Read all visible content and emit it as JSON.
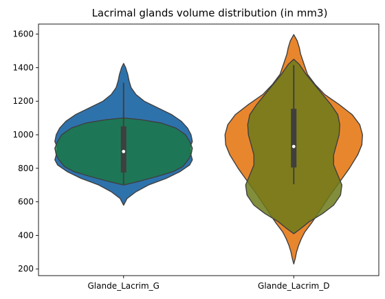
{
  "chart_data": {
    "type": "violin",
    "title": "Lacrimal glands volume distribution (in mm3)",
    "xlabel": "",
    "ylabel": "",
    "ylim": [
      160,
      1660
    ],
    "yticks": [
      200,
      400,
      600,
      800,
      1000,
      1200,
      1400,
      1600
    ],
    "categories": [
      "Glande_Lacrim_G",
      "Glande_Lacrim_D"
    ],
    "grid": false,
    "legend": "none",
    "violins": [
      {
        "category": "Glande_Lacrim_G",
        "layer": "back",
        "color": "#2e72ac",
        "profile": [
          [
            580,
            0
          ],
          [
            620,
            0.05
          ],
          [
            660,
            0.18
          ],
          [
            700,
            0.36
          ],
          [
            740,
            0.62
          ],
          [
            780,
            0.82
          ],
          [
            820,
            0.96
          ],
          [
            850,
            1.0
          ],
          [
            880,
            0.98
          ],
          [
            920,
            0.96
          ],
          [
            960,
            1.0
          ],
          [
            1000,
            0.98
          ],
          [
            1040,
            0.93
          ],
          [
            1080,
            0.84
          ],
          [
            1120,
            0.7
          ],
          [
            1160,
            0.5
          ],
          [
            1200,
            0.3
          ],
          [
            1240,
            0.18
          ],
          [
            1280,
            0.11
          ],
          [
            1320,
            0.08
          ],
          [
            1360,
            0.06
          ],
          [
            1400,
            0.03
          ],
          [
            1425,
            0
          ]
        ]
      },
      {
        "category": "Glande_Lacrim_G",
        "layer": "front",
        "color": "#1a7846",
        "profile": [
          [
            700,
            0
          ],
          [
            720,
            0.2
          ],
          [
            750,
            0.48
          ],
          [
            780,
            0.72
          ],
          [
            810,
            0.86
          ],
          [
            850,
            0.94
          ],
          [
            880,
            0.98
          ],
          [
            920,
            1.0
          ],
          [
            960,
            0.96
          ],
          [
            1000,
            0.9
          ],
          [
            1040,
            0.76
          ],
          [
            1070,
            0.55
          ],
          [
            1090,
            0.25
          ],
          [
            1100,
            0
          ]
        ]
      },
      {
        "category": "Glande_Lacrim_D",
        "layer": "back",
        "color": "#e8862e",
        "profile": [
          [
            230,
            0
          ],
          [
            260,
            0.02
          ],
          [
            300,
            0.04
          ],
          [
            340,
            0.07
          ],
          [
            380,
            0.11
          ],
          [
            420,
            0.16
          ],
          [
            480,
            0.27
          ],
          [
            560,
            0.4
          ],
          [
            640,
            0.53
          ],
          [
            720,
            0.67
          ],
          [
            800,
            0.81
          ],
          [
            880,
            0.93
          ],
          [
            940,
            0.99
          ],
          [
            1000,
            1.0
          ],
          [
            1060,
            0.96
          ],
          [
            1120,
            0.85
          ],
          [
            1180,
            0.66
          ],
          [
            1240,
            0.45
          ],
          [
            1300,
            0.31
          ],
          [
            1360,
            0.2
          ],
          [
            1420,
            0.15
          ],
          [
            1480,
            0.1
          ],
          [
            1520,
            0.08
          ],
          [
            1560,
            0.05
          ],
          [
            1597,
            0
          ]
        ]
      },
      {
        "category": "Glande_Lacrim_D",
        "layer": "front",
        "color": "#6c7a1a",
        "profile": [
          [
            410,
            0
          ],
          [
            440,
            0.1
          ],
          [
            480,
            0.22
          ],
          [
            530,
            0.42
          ],
          [
            580,
            0.58
          ],
          [
            640,
            0.68
          ],
          [
            700,
            0.7
          ],
          [
            760,
            0.64
          ],
          [
            820,
            0.58
          ],
          [
            880,
            0.58
          ],
          [
            940,
            0.62
          ],
          [
            1000,
            0.66
          ],
          [
            1060,
            0.67
          ],
          [
            1120,
            0.64
          ],
          [
            1180,
            0.54
          ],
          [
            1240,
            0.42
          ],
          [
            1300,
            0.3
          ],
          [
            1360,
            0.18
          ],
          [
            1420,
            0.08
          ],
          [
            1450,
            0
          ]
        ]
      }
    ],
    "boxes": [
      {
        "category": "Glande_Lacrim_G",
        "whisker_low": 705,
        "q1": 775,
        "median": 900,
        "q3": 1050,
        "whisker_high": 1310
      },
      {
        "category": "Glande_Lacrim_D",
        "whisker_low": 705,
        "q1": 805,
        "median": 930,
        "q3": 1155,
        "whisker_high": 1415
      }
    ]
  }
}
